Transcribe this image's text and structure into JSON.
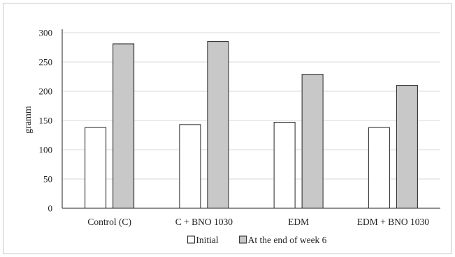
{
  "chart_data": {
    "type": "bar",
    "title": "",
    "ylabel": "gramm",
    "xlabel": "",
    "ylim": [
      0,
      300
    ],
    "yticks": [
      0,
      50,
      100,
      150,
      200,
      250,
      300
    ],
    "grid": true,
    "legend_position": "bottom",
    "categories": [
      "Control (C)",
      "C + BNO 1030",
      "EDM",
      "EDM + BNO 1030"
    ],
    "series": [
      {
        "name": "Initial",
        "values": [
          138,
          143,
          147,
          138
        ],
        "color": "#ffffff"
      },
      {
        "name": "At the end of week 6",
        "values": [
          281,
          285,
          229,
          210
        ],
        "color": "#c8c8c8"
      }
    ]
  }
}
